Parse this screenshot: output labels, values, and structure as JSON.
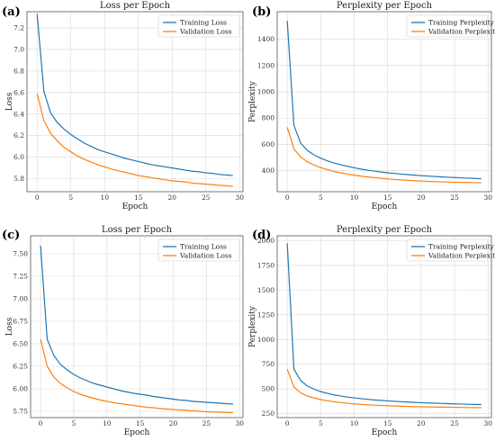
{
  "colors": {
    "training": "#1f77b4",
    "validation": "#ff7f0e"
  },
  "chart_data": [
    {
      "panel": "(a)",
      "type": "line",
      "title": "Loss per Epoch",
      "xlabel": "Epoch",
      "ylabel": "Loss",
      "xlim": [
        -1.5,
        30.5
      ],
      "ylim": [
        5.68,
        7.35
      ],
      "xticks": [
        0,
        5,
        10,
        15,
        20,
        25,
        30
      ],
      "yticks": [
        5.8,
        6.0,
        6.2,
        6.4,
        6.6,
        6.8,
        7.0,
        7.2
      ],
      "ytick_labels": [
        "5.8",
        "6.0",
        "6.2",
        "6.4",
        "6.6",
        "6.8",
        "7.0",
        "7.2"
      ],
      "grid": true,
      "legend_position": "top-right",
      "x": [
        0,
        1,
        2,
        3,
        4,
        5,
        6,
        7,
        8,
        9,
        10,
        11,
        12,
        13,
        14,
        15,
        16,
        17,
        18,
        19,
        20,
        21,
        22,
        23,
        24,
        25,
        26,
        27,
        28,
        29
      ],
      "series": [
        {
          "name": "Training Loss",
          "color": "training",
          "values": [
            7.33,
            6.61,
            6.41,
            6.32,
            6.26,
            6.21,
            6.17,
            6.13,
            6.1,
            6.07,
            6.05,
            6.03,
            6.01,
            5.99,
            5.975,
            5.96,
            5.945,
            5.93,
            5.92,
            5.91,
            5.9,
            5.89,
            5.88,
            5.87,
            5.865,
            5.855,
            5.85,
            5.84,
            5.835,
            5.83
          ]
        },
        {
          "name": "Validation Loss",
          "color": "validation",
          "values": [
            6.59,
            6.34,
            6.22,
            6.15,
            6.09,
            6.05,
            6.01,
            5.98,
            5.955,
            5.93,
            5.91,
            5.89,
            5.875,
            5.86,
            5.845,
            5.83,
            5.82,
            5.81,
            5.8,
            5.79,
            5.78,
            5.775,
            5.77,
            5.76,
            5.755,
            5.75,
            5.745,
            5.74,
            5.735,
            5.73
          ]
        }
      ]
    },
    {
      "panel": "(b)",
      "type": "line",
      "title": "Perplexity per Epoch",
      "xlabel": "Epoch",
      "ylabel": "Perplexity",
      "xlim": [
        -1.5,
        30.5
      ],
      "ylim": [
        240,
        1610
      ],
      "xticks": [
        0,
        5,
        10,
        15,
        20,
        25,
        30
      ],
      "yticks": [
        400,
        600,
        800,
        1000,
        1200,
        1400
      ],
      "ytick_labels": [
        "400",
        "600",
        "800",
        "1000",
        "1200",
        "1400"
      ],
      "grid": true,
      "legend_position": "top-right",
      "x": [
        0,
        1,
        2,
        3,
        4,
        5,
        6,
        7,
        8,
        9,
        10,
        11,
        12,
        13,
        14,
        15,
        16,
        17,
        18,
        19,
        20,
        21,
        22,
        23,
        24,
        25,
        26,
        27,
        28,
        29
      ],
      "series": [
        {
          "name": "Training Perplexity",
          "color": "training",
          "values": [
            1540,
            745,
            610,
            555,
            520,
            495,
            475,
            458,
            445,
            433,
            422,
            412,
            404,
            397,
            390,
            384,
            379,
            374,
            370,
            366,
            362,
            359,
            356,
            353,
            350,
            348,
            345,
            343,
            341,
            339
          ]
        },
        {
          "name": "Validation Perplexity",
          "color": "validation",
          "values": [
            730,
            565,
            505,
            468,
            443,
            423,
            408,
            394,
            384,
            374,
            366,
            359,
            352,
            347,
            342,
            337,
            333,
            330,
            327,
            324,
            321,
            319,
            317,
            315,
            314,
            312,
            311,
            310,
            309,
            308
          ]
        }
      ]
    },
    {
      "panel": "(c)",
      "type": "line",
      "title": "Loss per Epoch",
      "xlabel": "Epoch",
      "ylabel": "Loss",
      "xlim": [
        -1.5,
        30.5
      ],
      "ylim": [
        5.68,
        7.7
      ],
      "xticks": [
        0,
        5,
        10,
        15,
        20,
        25,
        30
      ],
      "yticks": [
        5.75,
        6.0,
        6.25,
        6.5,
        6.75,
        7.0,
        7.25,
        7.5
      ],
      "ytick_labels": [
        "5.75",
        "6.00",
        "6.25",
        "6.50",
        "6.75",
        "7.00",
        "7.25",
        "7.50"
      ],
      "grid": true,
      "legend_position": "top-right",
      "x": [
        0,
        1,
        2,
        3,
        4,
        5,
        6,
        7,
        8,
        9,
        10,
        11,
        12,
        13,
        14,
        15,
        16,
        17,
        18,
        19,
        20,
        21,
        22,
        23,
        24,
        25,
        26,
        27,
        28,
        29
      ],
      "series": [
        {
          "name": "Training Loss",
          "color": "training",
          "values": [
            7.59,
            6.55,
            6.37,
            6.27,
            6.21,
            6.16,
            6.12,
            6.09,
            6.06,
            6.04,
            6.02,
            6.0,
            5.98,
            5.965,
            5.95,
            5.94,
            5.93,
            5.915,
            5.905,
            5.895,
            5.885,
            5.875,
            5.87,
            5.86,
            5.855,
            5.85,
            5.845,
            5.84,
            5.835,
            5.83
          ]
        },
        {
          "name": "Validation Loss",
          "color": "validation",
          "values": [
            6.55,
            6.25,
            6.13,
            6.06,
            6.01,
            5.97,
            5.94,
            5.915,
            5.895,
            5.875,
            5.86,
            5.845,
            5.835,
            5.825,
            5.815,
            5.805,
            5.795,
            5.79,
            5.78,
            5.775,
            5.77,
            5.765,
            5.76,
            5.755,
            5.75,
            5.745,
            5.742,
            5.74,
            5.737,
            5.735
          ]
        }
      ]
    },
    {
      "panel": "(d)",
      "type": "line",
      "title": "Perplexity per Epoch",
      "xlabel": "Epoch",
      "ylabel": "Perplexity",
      "xlim": [
        -1.5,
        30.5
      ],
      "ylim": [
        210,
        2050
      ],
      "xticks": [
        0,
        5,
        10,
        15,
        20,
        25,
        30
      ],
      "yticks": [
        250,
        500,
        750,
        1000,
        1250,
        1500,
        1750,
        2000
      ],
      "ytick_labels": [
        "250",
        "500",
        "750",
        "1000",
        "1250",
        "1500",
        "1750",
        "2000"
      ],
      "grid": true,
      "legend_position": "top-right",
      "x": [
        0,
        1,
        2,
        3,
        4,
        5,
        6,
        7,
        8,
        9,
        10,
        11,
        12,
        13,
        14,
        15,
        16,
        17,
        18,
        19,
        20,
        21,
        22,
        23,
        24,
        25,
        26,
        27,
        28,
        29
      ],
      "series": [
        {
          "name": "Training Perplexity",
          "color": "training",
          "values": [
            1975,
            700,
            585,
            530,
            498,
            473,
            455,
            440,
            428,
            418,
            410,
            402,
            395,
            389,
            384,
            379,
            375,
            371,
            367,
            364,
            361,
            358,
            356,
            354,
            351,
            349,
            347,
            345,
            343,
            342
          ]
        },
        {
          "name": "Validation Perplexity",
          "color": "validation",
          "values": [
            700,
            520,
            460,
            428,
            408,
            392,
            380,
            370,
            362,
            355,
            349,
            344,
            340,
            336,
            333,
            330,
            327,
            325,
            323,
            321,
            319,
            318,
            317,
            316,
            315,
            314,
            313,
            312,
            311,
            310
          ]
        }
      ]
    }
  ]
}
